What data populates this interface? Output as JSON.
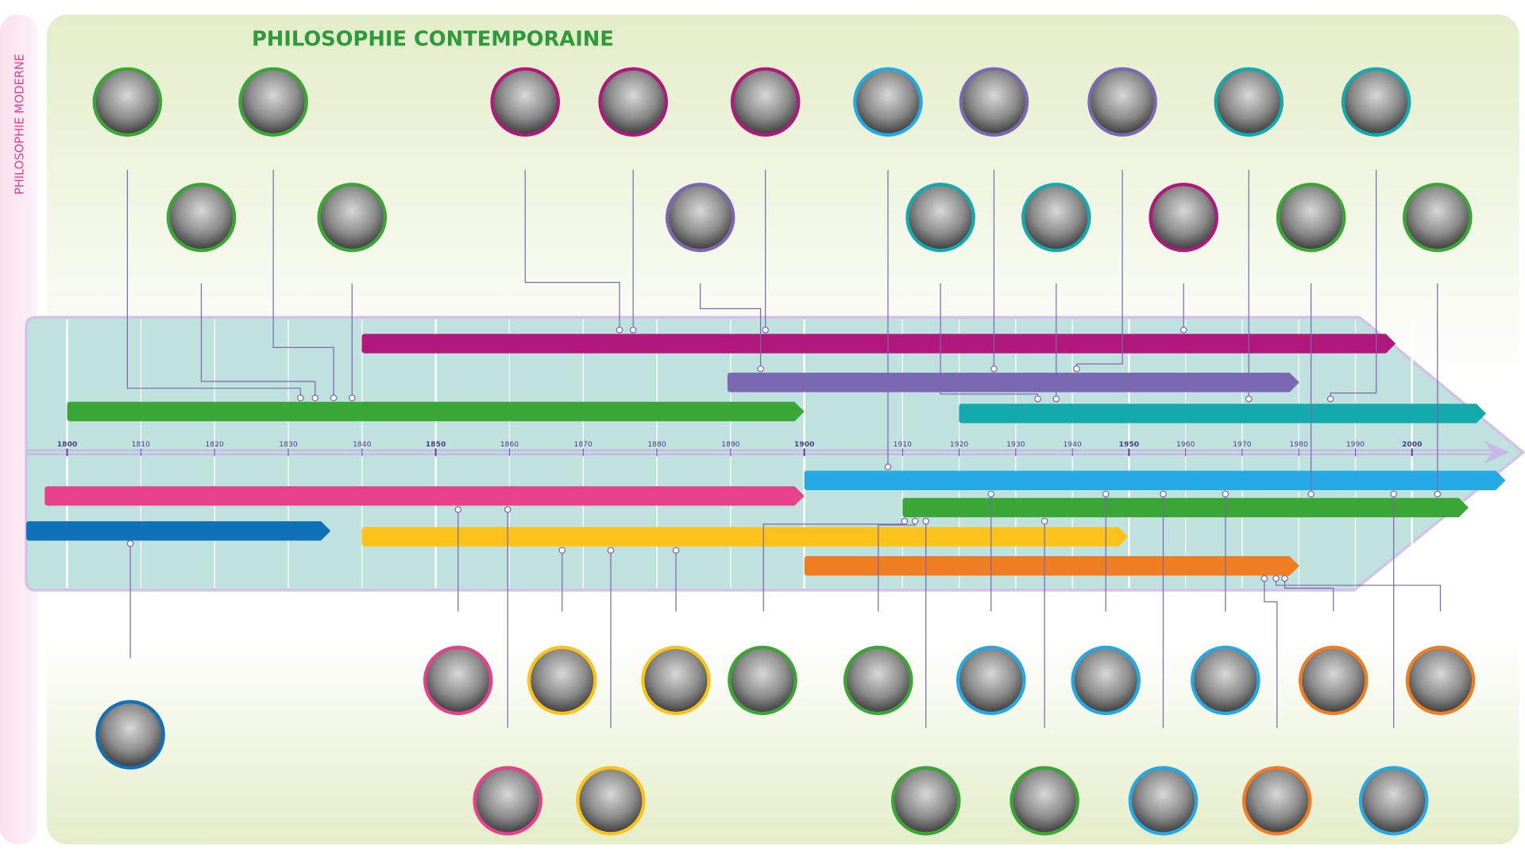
{
  "title": "PHILOSOPHIE CONTEMPORAINE",
  "side_label": "PHILOSOPHIE MODERNE",
  "timeline": {
    "years": [
      1800,
      1810,
      1820,
      1830,
      1840,
      1850,
      1860,
      1870,
      1880,
      1890,
      1900,
      1910,
      1920,
      1930,
      1940,
      1950,
      1960,
      1970,
      1980,
      1990,
      2000
    ]
  }
}
